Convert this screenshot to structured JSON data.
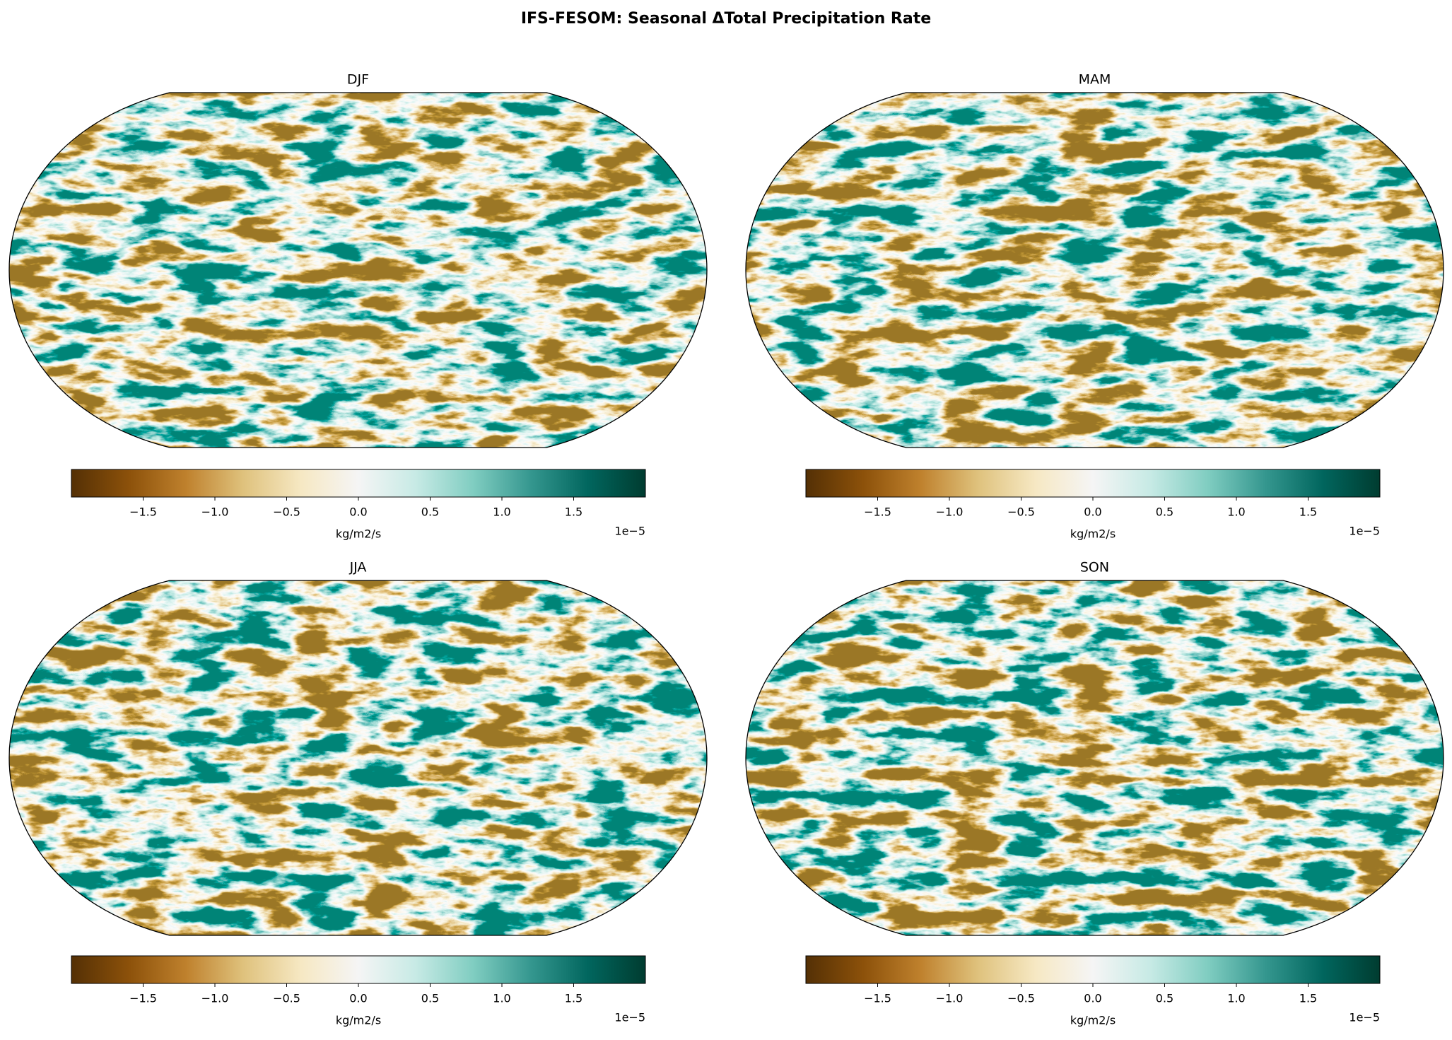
{
  "title": "IFS-FESOM: Seasonal ΔTotal Precipitation Rate",
  "colormap": [
    "#543005",
    "#8c510a",
    "#bf812d",
    "#dfc27d",
    "#f6e8c3",
    "#f5f5f5",
    "#c7eae5",
    "#80cdc1",
    "#35978f",
    "#01665e",
    "#003c30"
  ],
  "panels": [
    {
      "title": "DJF",
      "colorbar": {
        "label": "kg/m2/s",
        "offset_text": "1e−5",
        "lim": [
          -2,
          2
        ],
        "ticks": [
          {
            "value": -1.5,
            "label": "−1.5"
          },
          {
            "value": -1,
            "label": "−1.0"
          },
          {
            "value": -0.5,
            "label": "−0.5"
          },
          {
            "value": 0,
            "label": "0.0"
          },
          0.5,
          {
            "value": 1,
            "label": "1.0"
          },
          1.5
        ]
      }
    },
    {
      "title": "MAM",
      "colorbar": {
        "label": "kg/m2/s",
        "offset_text": "1e−5",
        "lim": [
          -2,
          2
        ],
        "ticks": [
          {
            "value": -1.5,
            "label": "−1.5"
          },
          {
            "value": -1,
            "label": "−1.0"
          },
          {
            "value": -0.5,
            "label": "−0.5"
          },
          {
            "value": 0,
            "label": "0.0"
          },
          0.5,
          {
            "value": 1,
            "label": "1.0"
          },
          1.5
        ]
      }
    },
    {
      "title": "JJA",
      "colorbar": {
        "label": "kg/m2/s",
        "offset_text": "1e−5",
        "lim": [
          -2,
          2
        ],
        "ticks": [
          {
            "value": -1.5,
            "label": "−1.5"
          },
          {
            "value": -1,
            "label": "−1.0"
          },
          {
            "value": -0.5,
            "label": "−0.5"
          },
          {
            "value": 0,
            "label": "0.0"
          },
          0.5,
          {
            "value": 1,
            "label": "1.0"
          },
          1.5
        ]
      }
    },
    {
      "title": "SON",
      "colorbar": {
        "label": "kg/m2/s",
        "offset_text": "1e−5",
        "lim": [
          -2,
          2
        ],
        "ticks": [
          {
            "value": -1.5,
            "label": "−1.5"
          },
          {
            "value": -1,
            "label": "−1.0"
          },
          {
            "value": -0.5,
            "label": "−0.5"
          },
          {
            "value": 0,
            "label": "0.0"
          },
          0.5,
          {
            "value": 1,
            "label": "1.0"
          },
          1.5
        ]
      }
    }
  ]
}
